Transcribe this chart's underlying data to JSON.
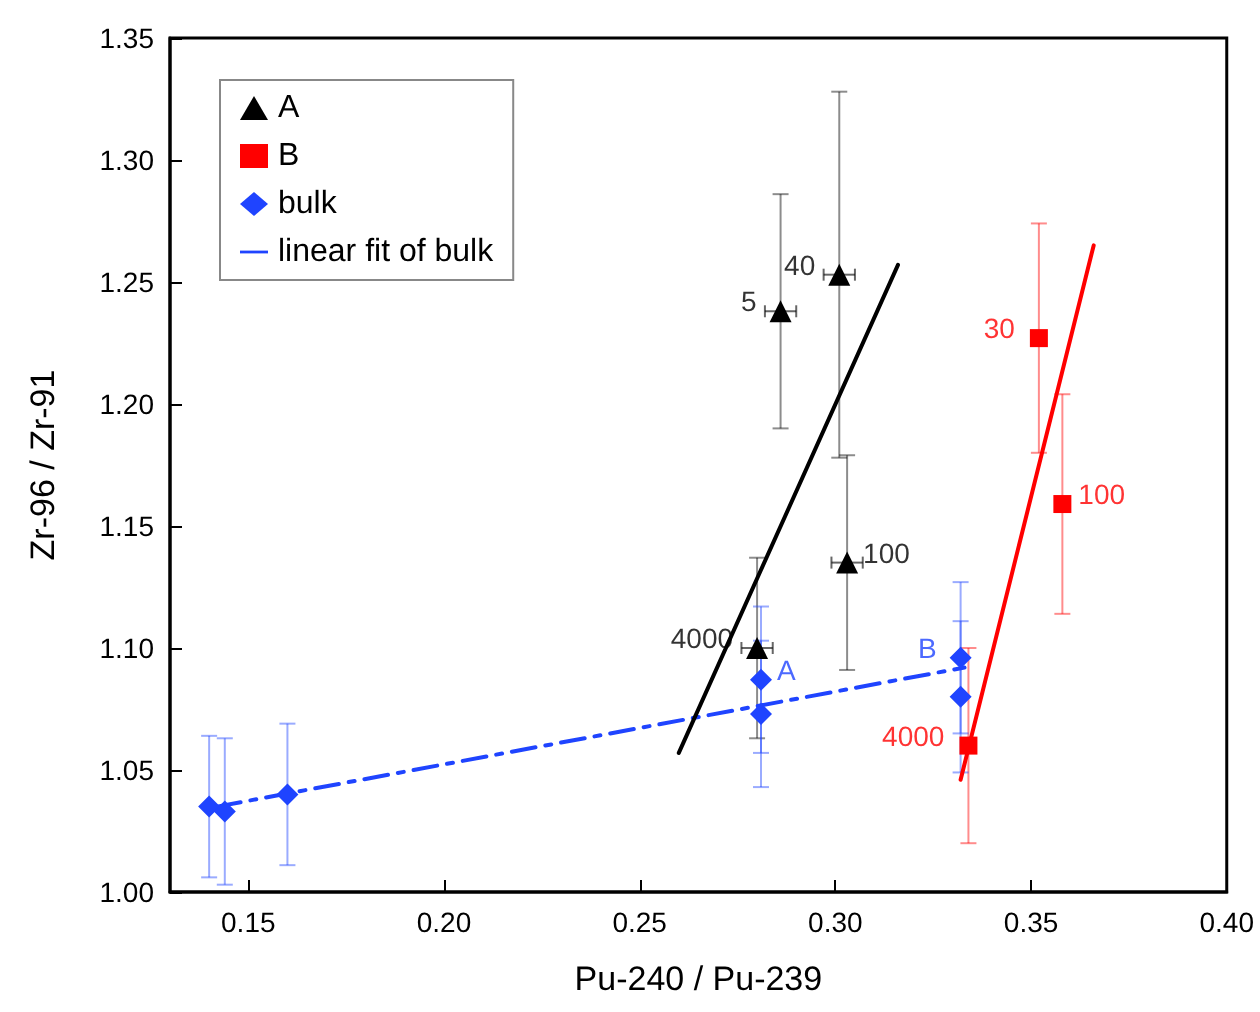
{
  "chart_data": {
    "type": "scatter",
    "xlabel": "Pu-240 / Pu-239",
    "ylabel": "Zr-96 / Zr-91",
    "xlim": [
      0.13,
      0.4
    ],
    "ylim": [
      1.0,
      1.35
    ],
    "xticks": [
      {
        "value": 0.15,
        "label": "0.15"
      },
      {
        "value": 0.2,
        "label": "0.20"
      },
      {
        "value": 0.25,
        "label": "0.25"
      },
      {
        "value": 0.3,
        "label": "0.30"
      },
      {
        "value": 0.35,
        "label": "0.35"
      },
      {
        "value": 0.4,
        "label": "0.40"
      }
    ],
    "yticks": [
      {
        "value": 1.0,
        "label": "1.00"
      },
      {
        "value": 1.05,
        "label": "1.05"
      },
      {
        "value": 1.1,
        "label": "1.10"
      },
      {
        "value": 1.15,
        "label": "1.15"
      },
      {
        "value": 1.2,
        "label": "1.20"
      },
      {
        "value": 1.25,
        "label": "1.25"
      },
      {
        "value": 1.3,
        "label": "1.30"
      },
      {
        "value": 1.35,
        "label": "1.35"
      }
    ],
    "grid": false,
    "legend": "top left",
    "annotations": [
      {
        "text": "5",
        "x": 0.286,
        "y": 1.238
      },
      {
        "text": "40",
        "x": 0.301,
        "y": 1.253
      },
      {
        "text": "100",
        "x": 0.303,
        "y": 1.135
      },
      {
        "text": "4000",
        "x": 0.28,
        "y": 1.1
      },
      {
        "text": "30",
        "x": 0.352,
        "y": 1.227
      },
      {
        "text": "100",
        "x": 0.358,
        "y": 1.159
      },
      {
        "text": "4000",
        "x": 0.334,
        "y": 1.06
      },
      {
        "text": "A",
        "x": 0.281,
        "y": 1.087
      },
      {
        "text": "B",
        "x": 0.332,
        "y": 1.096
      }
    ],
    "series": [
      {
        "name": "A",
        "marker": "triangle",
        "color": "#000000",
        "x": [
          0.286,
          0.301,
          0.303,
          0.28
        ],
        "values": [
          1.238,
          1.253,
          1.135,
          1.1
        ],
        "errors": [
          0.048,
          0.075,
          0.044,
          0.037
        ],
        "xerrors": [
          0.004,
          0.004,
          0.004,
          0.004
        ]
      },
      {
        "name": "B",
        "marker": "square",
        "color": "#ff0000",
        "x": [
          0.352,
          0.358,
          0.334
        ],
        "values": [
          1.227,
          1.159,
          1.06
        ],
        "errors": [
          0.047,
          0.045,
          0.04
        ]
      },
      {
        "name": "bulk",
        "marker": "diamond",
        "color": "#1f44ff",
        "x": [
          0.14,
          0.144,
          0.16,
          0.281,
          0.281,
          0.332,
          0.332
        ],
        "values": [
          1.035,
          1.033,
          1.04,
          1.087,
          1.073,
          1.096,
          1.08
        ],
        "errors": [
          0.029,
          0.03,
          0.029,
          0.03,
          0.03,
          0.031,
          0.031
        ]
      },
      {
        "name": "linear fit of bulk",
        "type": "line",
        "marker": "none",
        "line_style": "dashdot",
        "color": "#1f44ff",
        "x": [
          0.142,
          0.333
        ],
        "values": [
          1.035,
          1.092
        ]
      },
      {
        "type": "line",
        "marker": "none",
        "line_style": "solid",
        "color": "#000000",
        "x": [
          0.26,
          0.316
        ],
        "values": [
          1.057,
          1.257
        ]
      },
      {
        "type": "line",
        "marker": "none",
        "line_style": "solid",
        "color": "#ff0000",
        "x": [
          0.332,
          0.366
        ],
        "values": [
          1.046,
          1.265
        ]
      }
    ]
  }
}
